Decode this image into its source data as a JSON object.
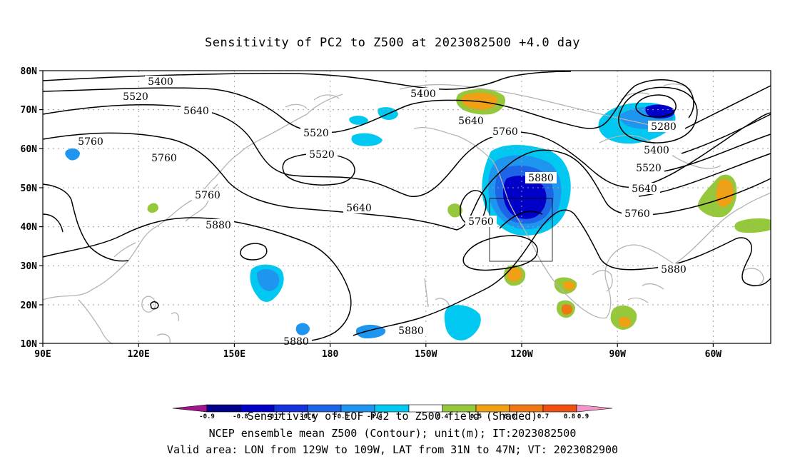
{
  "title": "Sensitivity of PC2 to Z500 at 2023082500 +4.0 day",
  "axes": {
    "lat_labels": [
      "10N",
      "20N",
      "30N",
      "40N",
      "50N",
      "60N",
      "70N",
      "80N"
    ],
    "lon_labels": [
      "90E",
      "120E",
      "150E",
      "180",
      "150W",
      "120W",
      "90W",
      "60W"
    ]
  },
  "contours": [
    {
      "label": "5400"
    },
    {
      "label": "5400"
    },
    {
      "label": "5520"
    },
    {
      "label": "5520"
    },
    {
      "label": "5520"
    },
    {
      "label": "5520"
    },
    {
      "label": "5640"
    },
    {
      "label": "5640"
    },
    {
      "label": "5640"
    },
    {
      "label": "5640"
    },
    {
      "label": "5760"
    },
    {
      "label": "5760"
    },
    {
      "label": "5760"
    },
    {
      "label": "5760"
    },
    {
      "label": "5760"
    },
    {
      "label": "5760"
    },
    {
      "label": "5880"
    },
    {
      "label": "5880"
    },
    {
      "label": "5880"
    },
    {
      "label": "5880"
    },
    {
      "label": "5880"
    },
    {
      "label": "5280"
    },
    {
      "label": "5400"
    }
  ],
  "colorbar": {
    "labels": [
      "-0.9",
      "-0.8",
      "-0.7",
      "-0.6",
      "-0.5",
      "-0.4",
      "0.4",
      "0.5",
      "0.6",
      "0.7",
      "0.8",
      "0.9"
    ],
    "colors": {
      "neg_under": "#a0148c",
      "neg_0.9": "#00008c",
      "neg_0.8": "#0000c8",
      "neg_0.7": "#1432dc",
      "neg_0.6": "#1e64e6",
      "neg_0.5": "#1e96f0",
      "neg_0.4": "#00c8f0",
      "zero": "#ffffff",
      "pos_0.4": "#96c83c",
      "pos_0.5": "#f0a014",
      "pos_0.6": "#f07814",
      "pos_0.7": "#f05014",
      "pos_0.8": "#e63214",
      "pos_0.9": "#f00000",
      "pos_over": "#f096c8"
    }
  },
  "captions": [
    "Sensitivity of EOF PC2 to Z500 field (Shaded)",
    "NCEP ensemble mean Z500 (Contour); unit(m); IT:2023082500",
    "Valid area: LON from 129W to 109W, LAT from 31N to 47N; VT: 2023082900"
  ]
}
